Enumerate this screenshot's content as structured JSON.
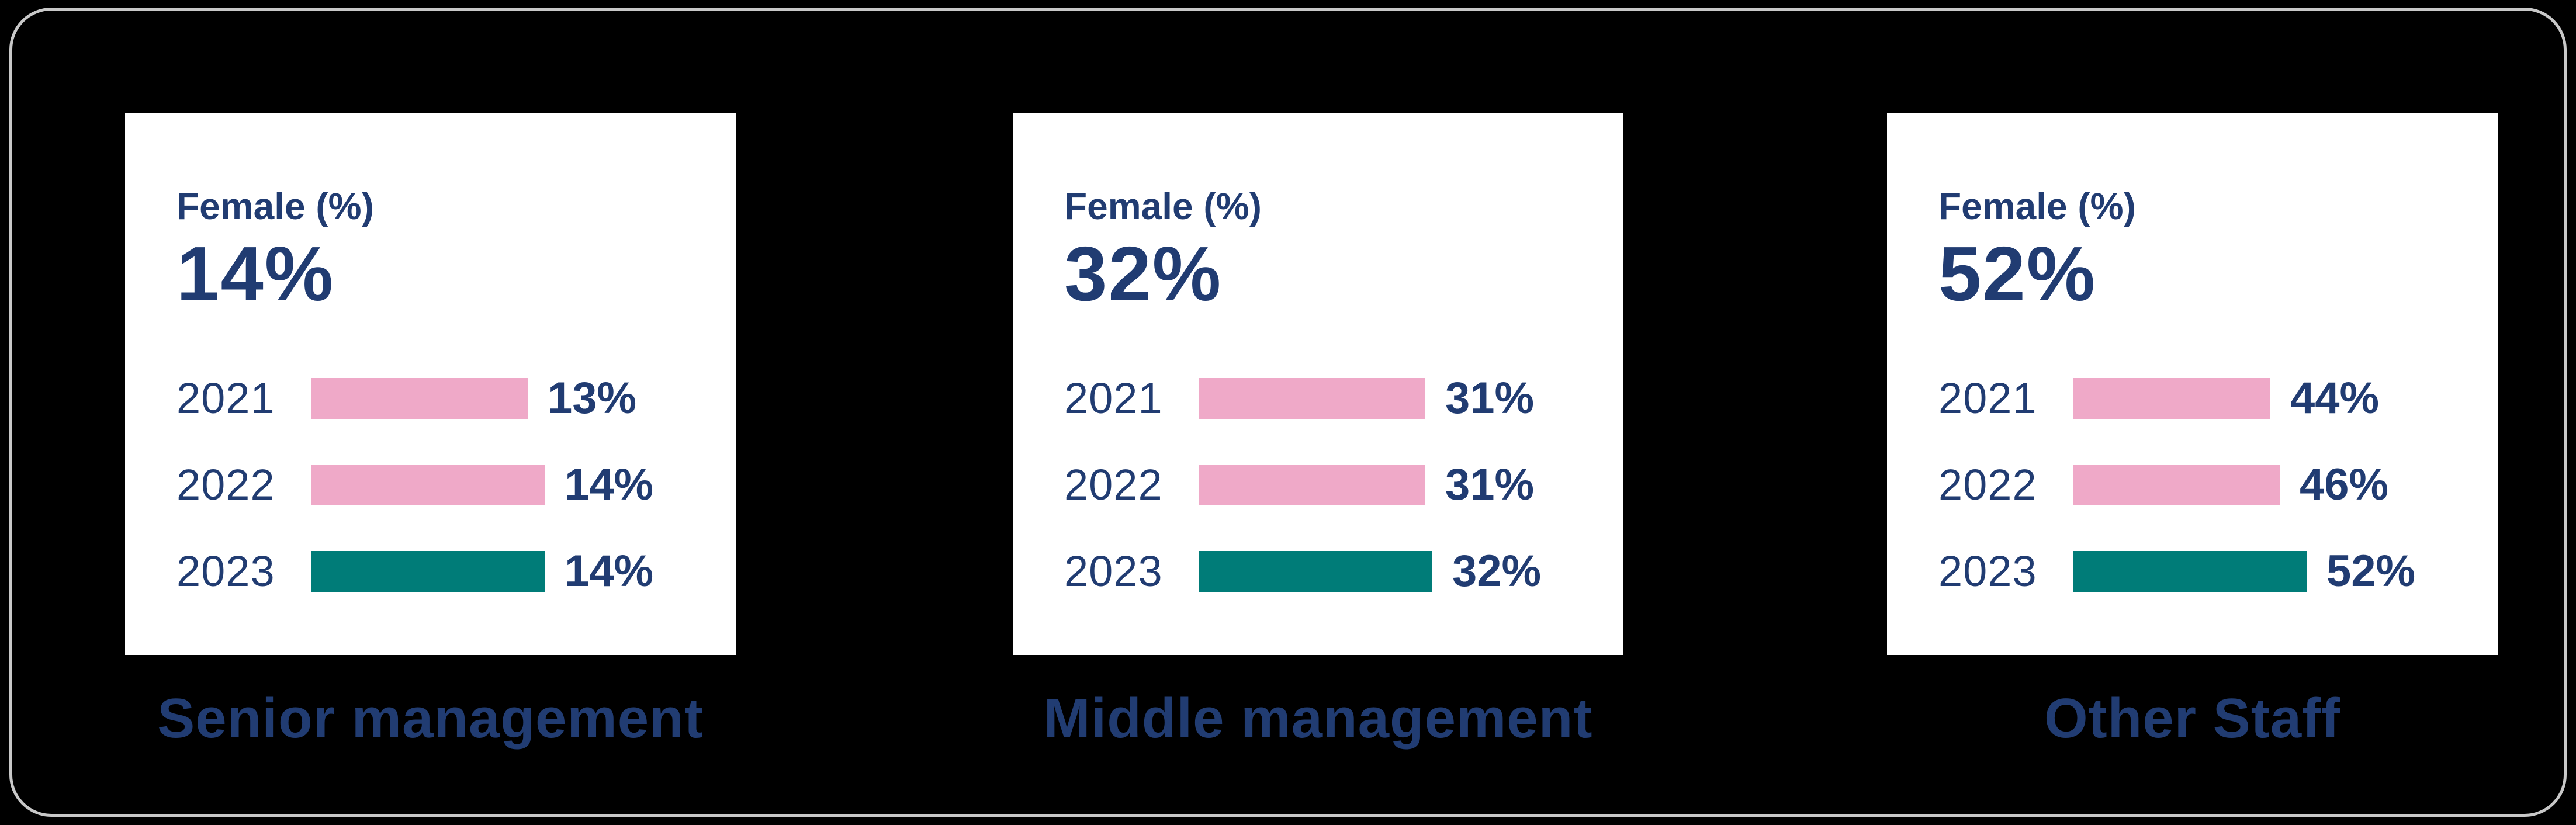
{
  "colors": {
    "navy": "#213c72",
    "pink": "#efa9c8",
    "teal": "#007c78",
    "card_bg": "#ffffff",
    "panel_bg": "#000000",
    "panel_border": "#c8c8c8"
  },
  "chart_data": [
    {
      "type": "bar",
      "orientation": "horizontal",
      "metric_label": "Female (%)",
      "headline": "14%",
      "category_label": "Senior management",
      "categories": [
        "2021",
        "2022",
        "2023"
      ],
      "values": [
        13,
        14,
        14
      ],
      "value_labels": [
        "13%",
        "14%",
        "14%"
      ],
      "bar_colors": [
        "pink",
        "pink",
        "teal"
      ],
      "unit": "%",
      "xlim": [
        0,
        14
      ],
      "grid": false,
      "legend": false
    },
    {
      "type": "bar",
      "orientation": "horizontal",
      "metric_label": "Female (%)",
      "headline": "32%",
      "category_label": "Middle management",
      "categories": [
        "2021",
        "2022",
        "2023"
      ],
      "values": [
        31,
        31,
        32
      ],
      "value_labels": [
        "31%",
        "31%",
        "32%"
      ],
      "bar_colors": [
        "pink",
        "pink",
        "teal"
      ],
      "unit": "%",
      "xlim": [
        0,
        32
      ],
      "grid": false,
      "legend": false
    },
    {
      "type": "bar",
      "orientation": "horizontal",
      "metric_label": "Female (%)",
      "headline": "52%",
      "category_label": "Other Staff",
      "categories": [
        "2021",
        "2022",
        "2023"
      ],
      "values": [
        44,
        46,
        52
      ],
      "value_labels": [
        "44%",
        "46%",
        "52%"
      ],
      "bar_colors": [
        "pink",
        "pink",
        "teal"
      ],
      "unit": "%",
      "xlim": [
        0,
        52
      ],
      "grid": false,
      "legend": false
    }
  ]
}
